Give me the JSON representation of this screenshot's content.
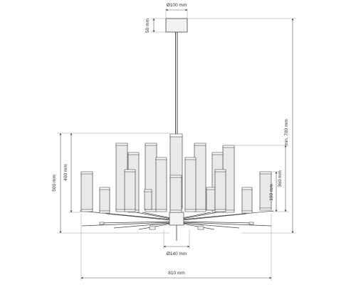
{
  "drawing": {
    "title": "",
    "dimensions": {
      "canopy_diameter": "Ø100 mm",
      "canopy_height": "50 mm",
      "total_height": "min. 700 mm",
      "body_height": "500 mm",
      "shade_span_height": "400 mm",
      "upper_right_height": "360 mm",
      "shade_height": "190 mm",
      "hub_diameter": "Ø140 mm",
      "total_width": "810 mm"
    }
  }
}
